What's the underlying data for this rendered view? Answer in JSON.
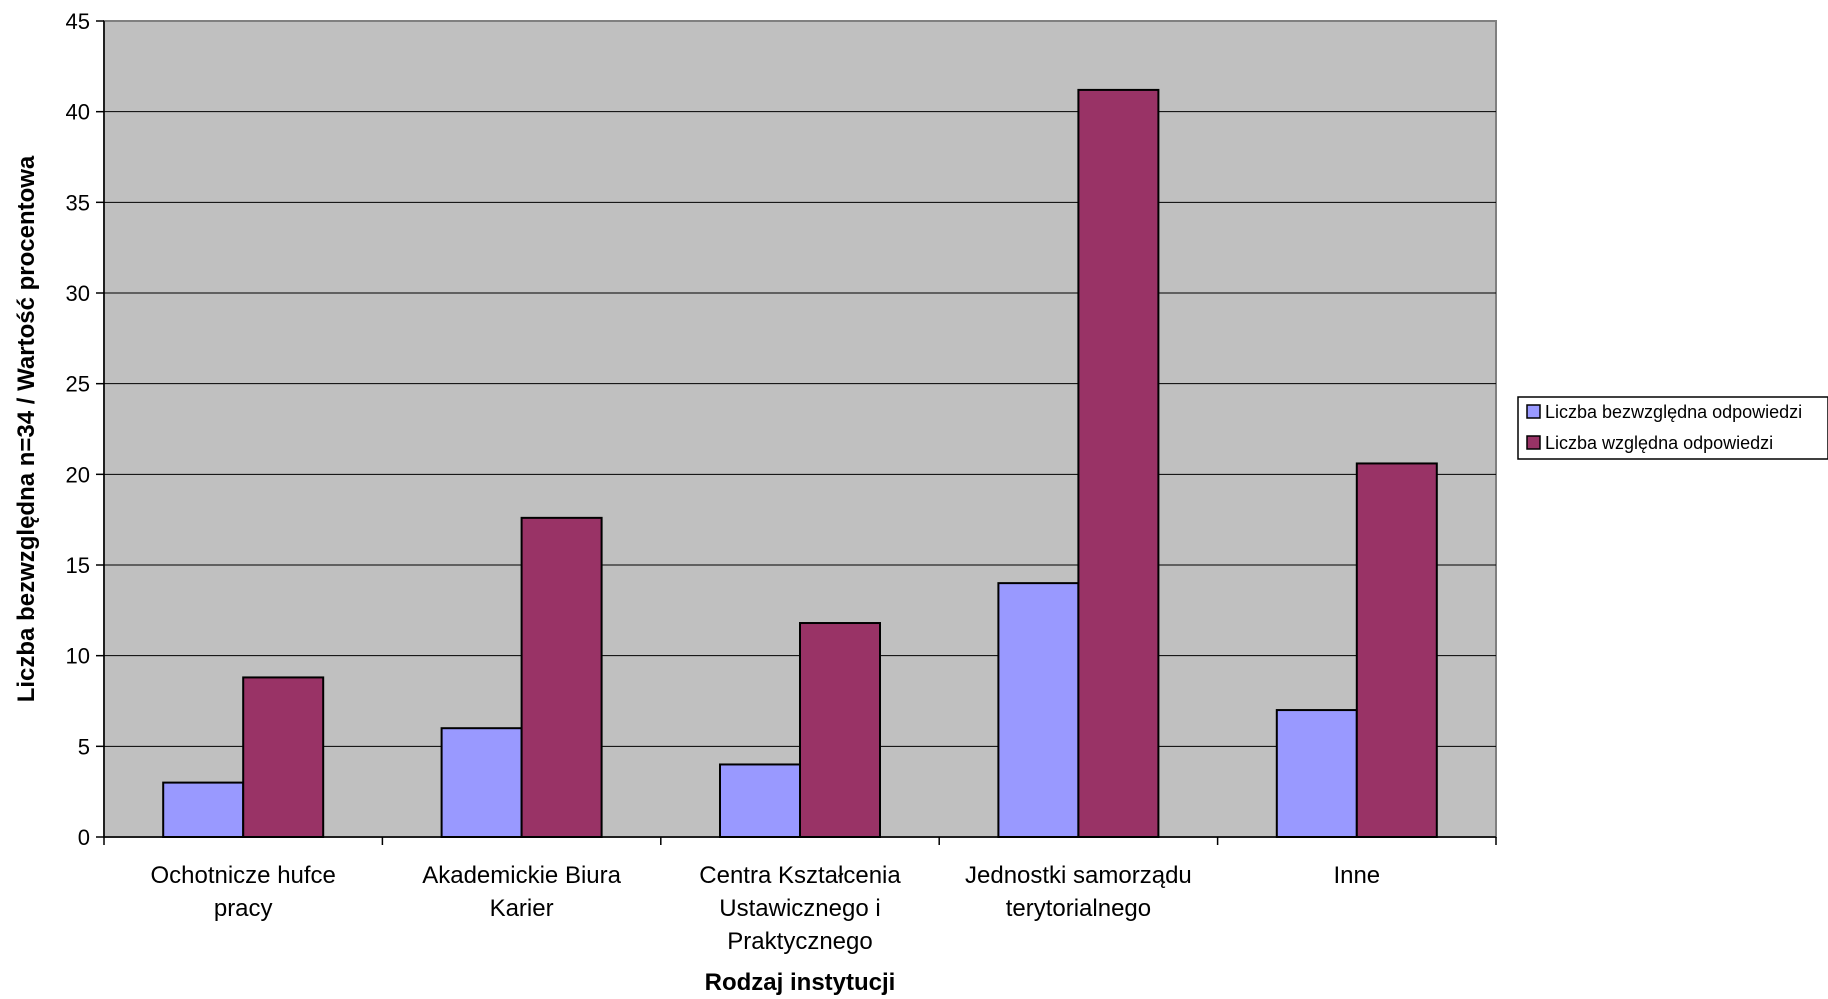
{
  "chart_data": {
    "type": "bar",
    "title": "",
    "xlabel": "Rodzaj instytucji",
    "ylabel": "Liczba bezwzględna n=34 / Wartość procentowa",
    "ylim": [
      0,
      45
    ],
    "yticks": [
      0,
      5,
      10,
      15,
      20,
      25,
      30,
      35,
      40,
      45
    ],
    "grid": true,
    "legend_position": "right",
    "categories": [
      [
        "Ochotnicze hufce",
        "pracy"
      ],
      [
        "Akademickie Biura",
        "Karier"
      ],
      [
        "Centra Kształcenia",
        "Ustawicznego i",
        "Praktycznego"
      ],
      [
        "Jednostki samorządu",
        "terytorialnego"
      ],
      [
        "Inne"
      ]
    ],
    "series": [
      {
        "name": "Liczba bezwzględna odpowiedzi",
        "color": "#9999ff",
        "values": [
          3,
          6,
          4,
          14,
          7
        ]
      },
      {
        "name": "Liczba względna odpowiedzi",
        "color": "#993366",
        "values": [
          8.8,
          17.6,
          11.8,
          41.2,
          20.6
        ]
      }
    ],
    "plot_background": "#c0c0c0"
  }
}
